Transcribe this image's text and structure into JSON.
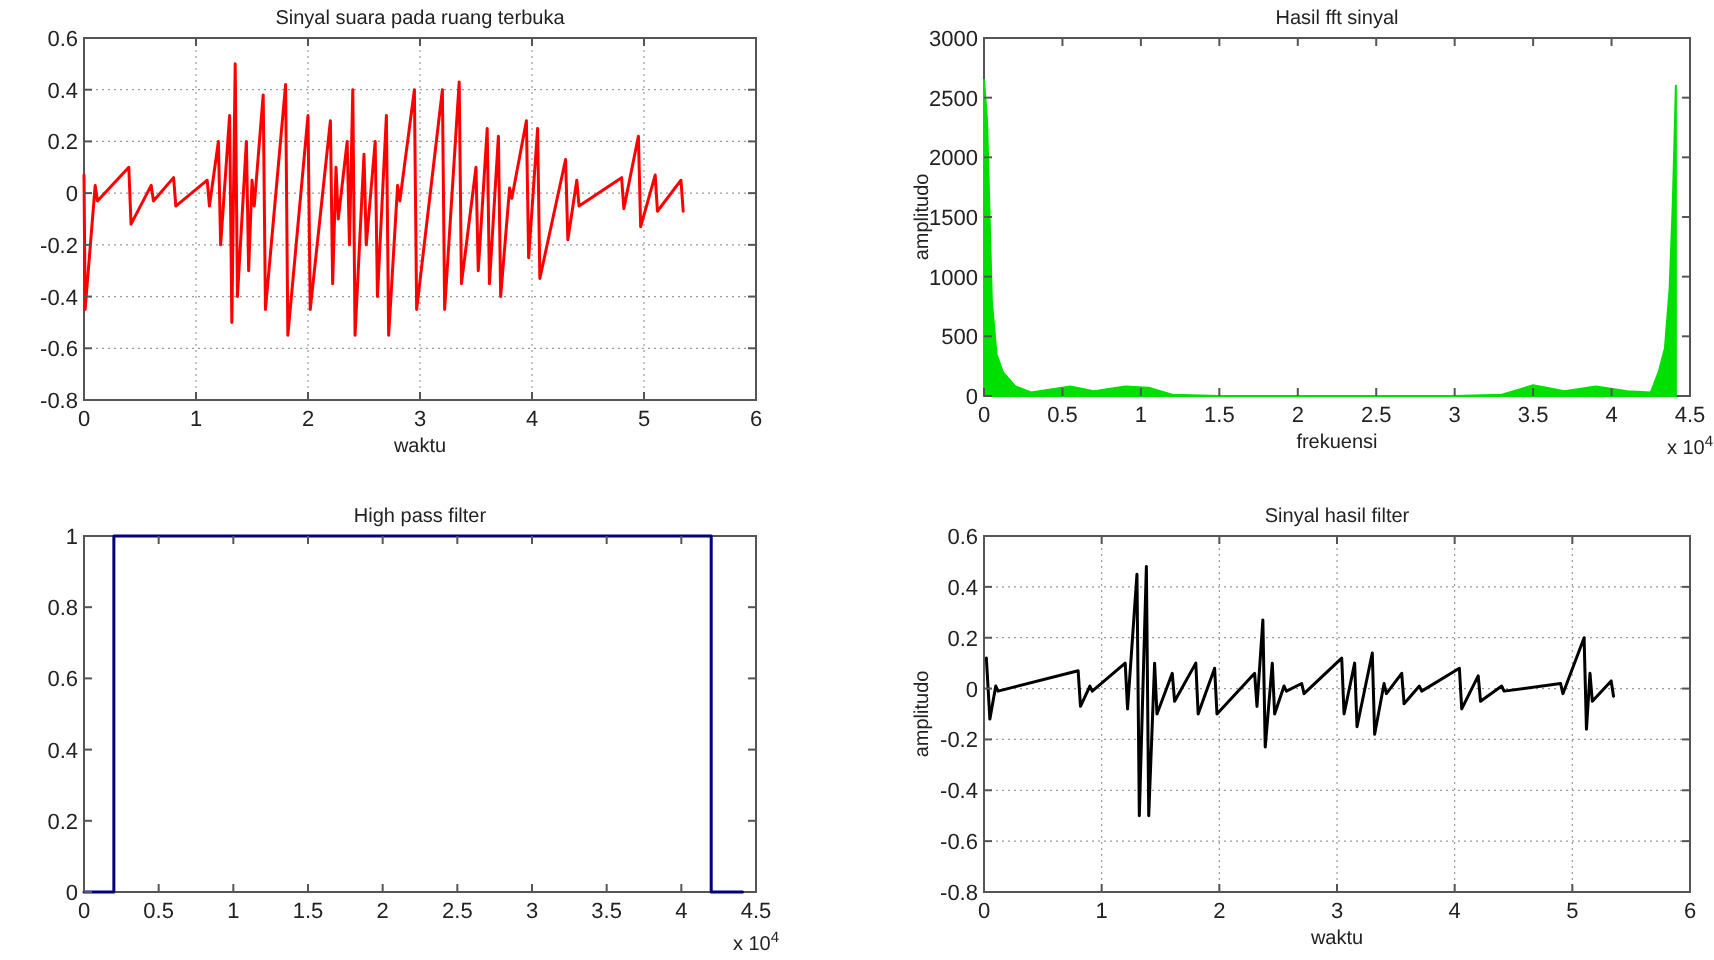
{
  "chart_data": [
    {
      "type": "line",
      "title": "Sinyal suara pada ruang terbuka",
      "xlabel": "waktu",
      "xlim": [
        0,
        6
      ],
      "xticks": [
        0,
        1,
        2,
        3,
        4,
        5,
        6
      ],
      "ylim": [
        -0.8,
        0.6
      ],
      "yticks": [
        -0.8,
        -0.6,
        -0.4,
        -0.2,
        0,
        0.2,
        0.4,
        0.6
      ],
      "grid": true,
      "series": [
        {
          "color": "#ff0000",
          "x": [
            0,
            0.01,
            0.1,
            0.12,
            0.4,
            0.42,
            0.6,
            0.62,
            0.8,
            0.82,
            1.1,
            1.12,
            1.2,
            1.22,
            1.3,
            1.32,
            1.35,
            1.37,
            1.45,
            1.47,
            1.5,
            1.52,
            1.6,
            1.62,
            1.8,
            1.82,
            2.0,
            2.02,
            2.2,
            2.22,
            2.25,
            2.27,
            2.35,
            2.37,
            2.4,
            2.42,
            2.5,
            2.52,
            2.6,
            2.62,
            2.7,
            2.72,
            2.8,
            2.82,
            2.95,
            2.97,
            3.2,
            3.22,
            3.35,
            3.37,
            3.5,
            3.52,
            3.6,
            3.62,
            3.7,
            3.72,
            3.8,
            3.82,
            3.95,
            3.97,
            4.05,
            4.07,
            4.3,
            4.32,
            4.4,
            4.42,
            4.8,
            4.82,
            4.95,
            4.97,
            5.1,
            5.12,
            5.33,
            5.35
          ],
          "values": [
            0.07,
            -0.45,
            0.03,
            -0.03,
            0.1,
            -0.12,
            0.03,
            -0.03,
            0.06,
            -0.05,
            0.05,
            -0.05,
            0.2,
            -0.2,
            0.3,
            -0.5,
            0.5,
            -0.4,
            0.2,
            -0.3,
            0.05,
            -0.05,
            0.38,
            -0.45,
            0.42,
            -0.55,
            0.3,
            -0.45,
            0.28,
            -0.35,
            0.1,
            -0.1,
            0.2,
            -0.2,
            0.4,
            -0.55,
            0.15,
            -0.2,
            0.2,
            -0.4,
            0.3,
            -0.55,
            0.03,
            -0.03,
            0.4,
            -0.45,
            0.4,
            -0.45,
            0.43,
            -0.35,
            0.1,
            -0.3,
            0.25,
            -0.35,
            0.22,
            -0.4,
            0.02,
            -0.02,
            0.28,
            -0.25,
            0.25,
            -0.33,
            0.13,
            -0.18,
            0.05,
            -0.05,
            0.06,
            -0.06,
            0.22,
            -0.13,
            0.07,
            -0.07,
            0.05,
            -0.07
          ]
        }
      ]
    },
    {
      "type": "area",
      "title": "Hasil fft sinyal",
      "xlabel": "frekuensi",
      "ylabel": "amplitudo",
      "annotations": [
        "x 10$^{4}$"
      ],
      "xlim": [
        0,
        4.5
      ],
      "xticks": [
        0,
        0.5,
        1,
        1.5,
        2,
        2.5,
        3,
        3.5,
        4,
        4.5
      ],
      "ylim": [
        0,
        3000
      ],
      "yticks": [
        0,
        500,
        1000,
        1500,
        2000,
        2500,
        3000
      ],
      "series": [
        {
          "color": "#00e000",
          "x": [
            0,
            0.02,
            0.05,
            0.08,
            0.12,
            0.2,
            0.3,
            0.55,
            0.7,
            0.9,
            1.05,
            1.2,
            1.5,
            2,
            3,
            3.3,
            3.5,
            3.7,
            3.9,
            4.1,
            4.25,
            4.3,
            4.34,
            4.37,
            4.39,
            4.41
          ],
          "values": [
            2650,
            2300,
            800,
            350,
            200,
            80,
            30,
            80,
            40,
            80,
            70,
            10,
            0,
            0,
            0,
            10,
            90,
            40,
            80,
            40,
            30,
            200,
            400,
            900,
            1600,
            2600
          ]
        }
      ]
    },
    {
      "type": "line",
      "title": "High pass filter",
      "annotations": [
        "x 10$^{4}$"
      ],
      "xlim": [
        0,
        4.5
      ],
      "xticks": [
        0,
        0.5,
        1,
        1.5,
        2,
        2.5,
        3,
        3.5,
        4,
        4.5
      ],
      "ylim": [
        0,
        1
      ],
      "yticks": [
        0,
        0.2,
        0.4,
        0.6,
        0.8,
        1
      ],
      "series": [
        {
          "color": "#000080",
          "x": [
            0,
            0.2,
            0.2,
            4.2,
            4.2,
            4.41
          ],
          "values": [
            0,
            0,
            1,
            1,
            0,
            0
          ]
        }
      ]
    },
    {
      "type": "line",
      "title": "Sinyal hasil filter",
      "xlabel": "waktu",
      "ylabel": "amplitudo",
      "xlim": [
        0,
        6
      ],
      "xticks": [
        0,
        1,
        2,
        3,
        4,
        5,
        6
      ],
      "ylim": [
        -0.8,
        0.6
      ],
      "yticks": [
        -0.8,
        -0.6,
        -0.4,
        -0.2,
        0,
        0.2,
        0.4,
        0.6
      ],
      "grid": true,
      "series": [
        {
          "color": "#000000",
          "x": [
            0.02,
            0.05,
            0.1,
            0.12,
            0.8,
            0.82,
            0.9,
            0.92,
            1.2,
            1.22,
            1.3,
            1.32,
            1.38,
            1.4,
            1.45,
            1.47,
            1.6,
            1.62,
            1.8,
            1.82,
            1.96,
            1.98,
            2.3,
            2.32,
            2.37,
            2.39,
            2.45,
            2.47,
            2.55,
            2.57,
            2.7,
            2.72,
            3.04,
            3.06,
            3.15,
            3.17,
            3.3,
            3.32,
            3.4,
            3.42,
            3.55,
            3.57,
            3.7,
            3.72,
            4.04,
            4.06,
            4.2,
            4.22,
            4.4,
            4.42,
            4.9,
            4.92,
            5.1,
            5.12,
            5.15,
            5.17,
            5.33,
            5.35
          ],
          "values": [
            0.12,
            -0.12,
            0.01,
            -0.01,
            0.07,
            -0.07,
            0.01,
            -0.01,
            0.1,
            -0.08,
            0.45,
            -0.5,
            0.48,
            -0.5,
            0.1,
            -0.1,
            0.06,
            -0.05,
            0.1,
            -0.1,
            0.08,
            -0.1,
            0.06,
            -0.07,
            0.27,
            -0.23,
            0.1,
            -0.1,
            0.01,
            -0.01,
            0.02,
            -0.02,
            0.12,
            -0.1,
            0.1,
            -0.15,
            0.14,
            -0.18,
            0.02,
            -0.02,
            0.06,
            -0.06,
            0.01,
            -0.01,
            0.08,
            -0.08,
            0.05,
            -0.05,
            0.01,
            -0.01,
            0.02,
            -0.02,
            0.2,
            -0.16,
            0.06,
            -0.05,
            0.03,
            -0.03
          ]
        }
      ]
    }
  ]
}
